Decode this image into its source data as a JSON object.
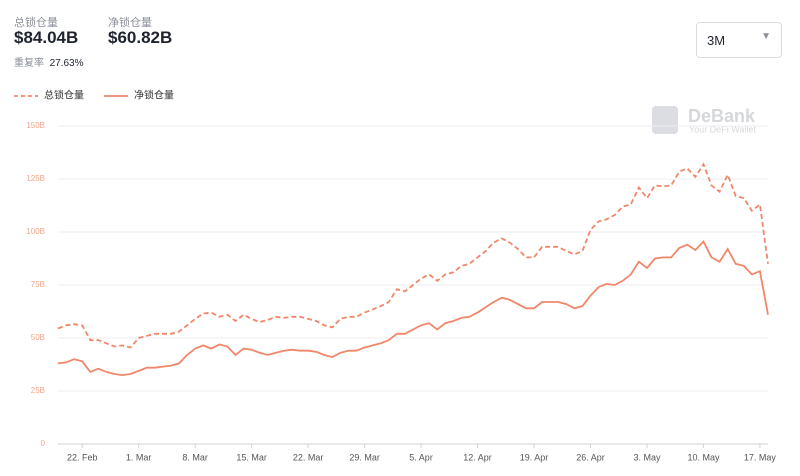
{
  "header": {
    "total_label": "总锁仓量",
    "total_value": "$84.04B",
    "net_label": "净锁仓量",
    "net_value": "$60.82B",
    "ratio_label": "重复率",
    "ratio_value": "27.63%",
    "range": "3M",
    "brand": "DeBank",
    "tagline": "Your DeFi Wallet"
  },
  "chart_data": {
    "type": "line",
    "categories": [
      null,
      null,
      null,
      "22. Feb",
      null,
      null,
      null,
      null,
      null,
      null,
      "1. Mar",
      null,
      null,
      null,
      null,
      null,
      null,
      "8. Mar",
      null,
      null,
      null,
      null,
      null,
      null,
      "15. Mar",
      null,
      null,
      null,
      null,
      null,
      null,
      "22. Mar",
      null,
      null,
      null,
      null,
      null,
      null,
      "29. Mar",
      null,
      null,
      null,
      null,
      null,
      null,
      "5. Apr",
      null,
      null,
      null,
      null,
      null,
      null,
      "12. Apr",
      null,
      null,
      null,
      null,
      null,
      null,
      "19. Apr",
      null,
      null,
      null,
      null,
      null,
      null,
      "26. Apr",
      null,
      null,
      null,
      null,
      null,
      null,
      "3. May",
      null,
      null,
      null,
      null,
      null,
      null,
      "10. May",
      null,
      null,
      null,
      null,
      null,
      null,
      "17. May",
      null
    ],
    "series": [
      {
        "name": "总锁仓量",
        "color": "#f0876a",
        "line_style": "dashed",
        "values": [
          54.5,
          56,
          56.5,
          56,
          49,
          49,
          47.5,
          46,
          46.5,
          45.5,
          50,
          51,
          52,
          52,
          52,
          53,
          56,
          59,
          61.5,
          62,
          60,
          61,
          58,
          61,
          59,
          57.5,
          58.5,
          60,
          59.5,
          60,
          60,
          59,
          58,
          56,
          55,
          59,
          60,
          60,
          62,
          63.5,
          65,
          67,
          73,
          72,
          75,
          78,
          80,
          77,
          80,
          81,
          84,
          85,
          88,
          91,
          95,
          97,
          95,
          92,
          88,
          88,
          93,
          93,
          93,
          91,
          89.5,
          91,
          101,
          105,
          106,
          108,
          112,
          113,
          121,
          116,
          122,
          121.5,
          122,
          128.5,
          130,
          126,
          132,
          122,
          119,
          127,
          117,
          116,
          110,
          113,
          85
        ]
      },
      {
        "name": "净锁仓量",
        "color": "#f0876a",
        "line_style": "solid",
        "values": [
          38,
          38.5,
          40,
          39,
          34,
          35.5,
          34,
          33,
          32.5,
          33,
          34.5,
          36,
          36,
          36.5,
          37,
          38,
          42,
          45,
          46.5,
          45,
          47,
          46,
          42,
          45,
          44.5,
          43,
          42,
          43,
          44,
          44.5,
          44,
          44,
          43.5,
          42,
          41,
          43,
          44,
          44,
          45.5,
          46.5,
          47.5,
          49,
          52,
          52,
          54,
          56,
          57,
          54,
          57,
          58,
          59.5,
          60,
          62,
          64.5,
          67,
          69,
          68,
          66,
          64,
          64,
          67,
          67,
          67,
          66,
          64,
          65,
          70,
          74,
          75.5,
          75,
          77,
          80,
          86,
          83,
          87.5,
          88,
          88,
          92.5,
          94,
          91.5,
          95.5,
          88,
          86,
          92,
          85,
          84,
          80,
          81.5,
          61
        ]
      }
    ],
    "ylim": [
      0,
      150
    ],
    "yticks": [
      {
        "value": 0,
        "label": "0"
      },
      {
        "value": 25,
        "label": "25B"
      },
      {
        "value": 50,
        "label": "50B"
      },
      {
        "value": 75,
        "label": "75B"
      },
      {
        "value": 100,
        "label": "100B"
      },
      {
        "value": 125,
        "label": "125B"
      },
      {
        "value": 150,
        "label": "150B"
      }
    ],
    "grid": true,
    "legend": "top-left",
    "tick_color": "#f4a58a"
  }
}
